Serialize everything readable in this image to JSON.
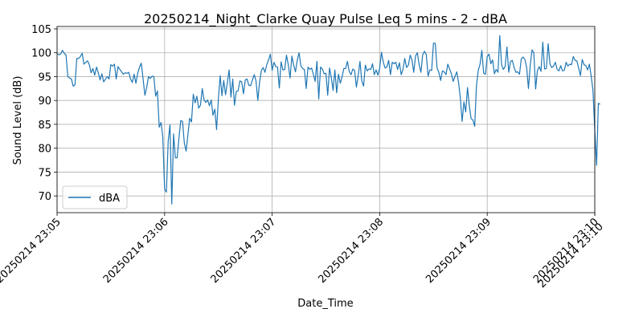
{
  "chart_data": {
    "type": "line",
    "title": "20250214_Night_Clarke Quay Pulse Leq 5 mins - 2 - dBA",
    "xlabel": "Date_Time",
    "ylabel": "Sound Level (dB)",
    "x_range": [
      "2025-02-14 23:05:00",
      "2025-02-14 23:10:00"
    ],
    "ylim": [
      66.5,
      105.5
    ],
    "x_tick_labels": [
      "20250214 23:05",
      "20250214 23:06",
      "20250214 23:07",
      "20250214 23:08",
      "20250214 23:09",
      "20250214 23:10",
      "20250214 23:10"
    ],
    "x_tick_times": [
      "2025-02-14 23:05:00",
      "2025-02-14 23:06:00",
      "2025-02-14 23:07:00",
      "2025-02-14 23:08:00",
      "2025-02-14 23:09:00",
      "2025-02-14 23:10:00",
      "2025-02-14 23:10:00"
    ],
    "y_ticks": [
      70,
      75,
      80,
      85,
      90,
      95,
      100,
      105
    ],
    "grid": true,
    "legend_position": "lower-left",
    "colors": {
      "series": "#1f77b4",
      "grid": "#b0b0b0"
    },
    "series": [
      {
        "name": "dBA",
        "x_start": "2025-02-14 23:05:00",
        "step_seconds": 1,
        "values": [
          99.8,
          99.6,
          99.7,
          100.5,
          99.9,
          99.5,
          95.0,
          94.7,
          94.5,
          93.0,
          93.3,
          98.8,
          98.8,
          99.2,
          99.9,
          97.6,
          98.0,
          98.3,
          97.5,
          95.8,
          96.7,
          95.3,
          97.0,
          95.8,
          94.3,
          95.6,
          93.9,
          94.5,
          95.0,
          94.5,
          97.5,
          97.2,
          97.6,
          94.5,
          97.1,
          96.5,
          96.0,
          95.5,
          95.8,
          95.7,
          95.9,
          94.5,
          93.8,
          95.5,
          93.6,
          95.7,
          97.0,
          97.8,
          94.5,
          91.1,
          92.7,
          95.0,
          94.6,
          95.1,
          95.0,
          90.9,
          92.0,
          84.4,
          85.4,
          82.4,
          71.4,
          70.8,
          81.5,
          84.9,
          68.3,
          83.0,
          78.0,
          78.0,
          82.1,
          85.8,
          85.6,
          81.1,
          79.4,
          82.8,
          86.3,
          85.5,
          91.3,
          89.5,
          90.9,
          88.4,
          89.0,
          92.5,
          90.1,
          89.6,
          90.1,
          88.9,
          90.1,
          86.9,
          88.2,
          83.9,
          90.3,
          95.2,
          91.0,
          94.2,
          91.2,
          93.7,
          96.4,
          90.7,
          94.5,
          89.0,
          91.9,
          92.0,
          94.1,
          93.9,
          91.4,
          94.3,
          94.5,
          93.2,
          93.1,
          94.3,
          95.4,
          94.1,
          90.0,
          93.9,
          96.3,
          96.9,
          95.9,
          97.5,
          98.5,
          99.7,
          96.3,
          98.0,
          97.1,
          97.0,
          92.6,
          98.1,
          96.4,
          96.5,
          99.5,
          97.5,
          94.7,
          99.3,
          97.4,
          96.0,
          98.4,
          100.0,
          97.3,
          96.7,
          96.5,
          92.5,
          97.0,
          96.5,
          96.8,
          95.5,
          94.0,
          98.2,
          90.3,
          97.0,
          96.6,
          95.6,
          95.7,
          91.1,
          96.8,
          94.8,
          92.1,
          96.4,
          91.6,
          95.5,
          93.6,
          94.9,
          96.7,
          96.7,
          98.2,
          96.1,
          95.4,
          96.6,
          96.3,
          92.8,
          95.2,
          98.2,
          94.1,
          93.0,
          97.4,
          96.2,
          96.6,
          96.5,
          97.7,
          95.4,
          96.4,
          95.3,
          96.8,
          100.1,
          98.0,
          96.8,
          97.0,
          98.4,
          95.4,
          98.0,
          97.7,
          98.0,
          96.5,
          97.9,
          95.4,
          96.5,
          98.8,
          96.9,
          97.4,
          99.5,
          98.5,
          95.9,
          99.3,
          100.0,
          97.5,
          95.9,
          99.6,
          100.3,
          99.6,
          95.1,
          96.4,
          96.3,
          102.0,
          102.0,
          96.8,
          95.9,
          94.2,
          96.2,
          96.0,
          95.4,
          97.6,
          96.6,
          95.6,
          94.0,
          95.0,
          96.0,
          93.8,
          90.5,
          85.6,
          89.7,
          87.6,
          92.7,
          88.9,
          86.2,
          85.9,
          84.6,
          93.2,
          96.3,
          97.6,
          100.5,
          95.7,
          95.5,
          99.2,
          99.7,
          97.7,
          98.5,
          95.6,
          96.5,
          95.9,
          103.6,
          97.5,
          96.5,
          97.1,
          101.2,
          95.9,
          98.2,
          98.4,
          96.9,
          95.9,
          96.0,
          95.5,
          98.7,
          99.1,
          98.6,
          96.9,
          92.5,
          97.4,
          100.6,
          100.0,
          92.4,
          96.3,
          97.1,
          96.1,
          102.2,
          96.6,
          96.7,
          101.9,
          97.6,
          96.9,
          97.2,
          98.0,
          96.5,
          96.2,
          97.3,
          96.2,
          96.3,
          98.0,
          97.2,
          97.6,
          97.5,
          99.2,
          98.4,
          98.3,
          96.8,
          95.2,
          98.6,
          97.5,
          97.3,
          96.4,
          97.6,
          95.1,
          92.1,
          83.8,
          76.4,
          89.4,
          89.2
        ]
      }
    ]
  }
}
